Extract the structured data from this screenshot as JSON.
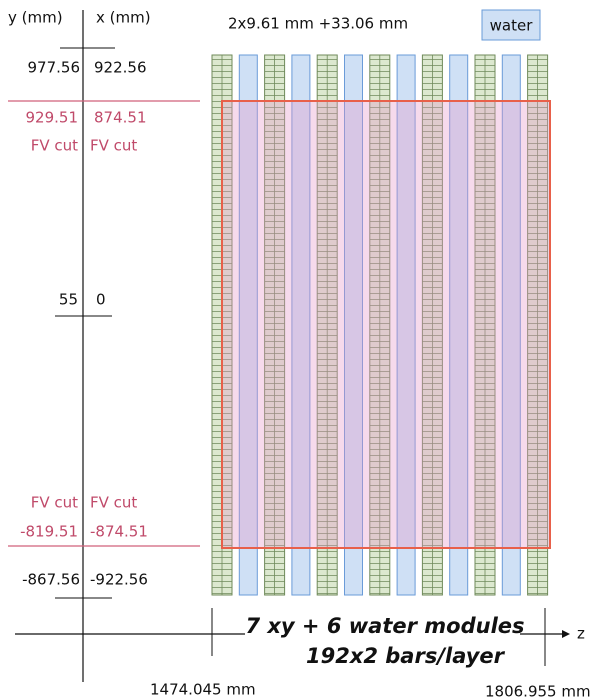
{
  "axes": {
    "y_label": "y (mm)",
    "x_label": "x (mm)",
    "z_label": "z"
  },
  "levels": {
    "top": {
      "y": "977.56",
      "x": "922.56"
    },
    "fv_top": {
      "y": "929.51",
      "x": "874.51",
      "y_note": "FV cut",
      "x_note": "FV cut"
    },
    "center": {
      "y": "55",
      "x": "0"
    },
    "fv_bottom": {
      "y": "-819.51",
      "x": "-874.51",
      "y_note": "FV cut",
      "x_note": "FV cut"
    },
    "bottom": {
      "y": "-867.56",
      "x": "-922.56"
    }
  },
  "header": "2x9.61 mm +33.06 mm",
  "legend": "water",
  "caption": {
    "line1": "7 xy + 6 water modules",
    "line2": "192x2 bars/layer"
  },
  "z_positions": {
    "start": "1474.045 mm",
    "end": "1806.955 mm"
  }
}
